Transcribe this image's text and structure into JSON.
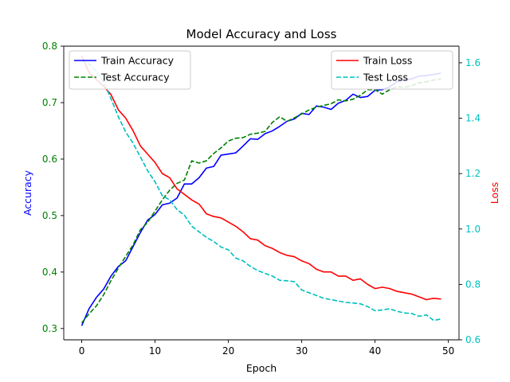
{
  "chart_data": {
    "type": "line",
    "title": "Model Accuracy and Loss",
    "xlabel": "Epoch",
    "ylabel_left": "Accuracy",
    "ylabel_right": "Loss",
    "xlim": [
      -2.45,
      51.45
    ],
    "ylim_left": [
      0.28,
      0.8
    ],
    "ylim_right": [
      0.6,
      1.66
    ],
    "x_ticks": [
      0,
      10,
      20,
      30,
      40,
      50
    ],
    "y_ticks_left": [
      0.3,
      0.4,
      0.5,
      0.6,
      0.7,
      0.8
    ],
    "y_ticks_right": [
      0.6,
      0.8,
      1.0,
      1.2,
      1.4,
      1.6
    ],
    "grid": false,
    "colors": {
      "left_axis": "#008000",
      "right_axis": "#00bfbf",
      "left_label": "#0000ff",
      "right_label": "#ff0000"
    },
    "legend_left": {
      "placement": "top-left",
      "entries": [
        "Train Accuracy",
        "Test Accuracy"
      ]
    },
    "legend_right": {
      "placement": "top-right",
      "entries": [
        "Train Loss",
        "Test Loss"
      ]
    },
    "x": [
      0,
      1,
      2,
      3,
      4,
      5,
      6,
      7,
      8,
      9,
      10,
      11,
      12,
      13,
      14,
      15,
      16,
      17,
      18,
      19,
      20,
      21,
      22,
      23,
      24,
      25,
      26,
      27,
      28,
      29,
      30,
      31,
      32,
      33,
      34,
      35,
      36,
      37,
      38,
      39,
      40,
      41,
      42,
      43,
      44,
      45,
      46,
      47,
      48,
      49
    ],
    "series": [
      {
        "name": "Train Accuracy",
        "axis": "left",
        "color": "#0000ff",
        "dash": "solid",
        "values": [
          0.305,
          0.335,
          0.355,
          0.37,
          0.393,
          0.41,
          0.42,
          0.445,
          0.47,
          0.492,
          0.502,
          0.519,
          0.522,
          0.531,
          0.556,
          0.556,
          0.567,
          0.584,
          0.587,
          0.607,
          0.609,
          0.611,
          0.623,
          0.636,
          0.635,
          0.645,
          0.65,
          0.658,
          0.667,
          0.671,
          0.681,
          0.679,
          0.694,
          0.692,
          0.688,
          0.699,
          0.704,
          0.715,
          0.709,
          0.711,
          0.722,
          0.723,
          0.728,
          0.737,
          0.74,
          0.742,
          0.747,
          0.748,
          0.75,
          0.752
        ]
      },
      {
        "name": "Test Accuracy",
        "axis": "left",
        "color": "#008000",
        "dash": "dashed",
        "values": [
          0.31,
          0.326,
          0.34,
          0.36,
          0.385,
          0.407,
          0.428,
          0.448,
          0.475,
          0.488,
          0.508,
          0.528,
          0.545,
          0.557,
          0.563,
          0.597,
          0.593,
          0.597,
          0.61,
          0.62,
          0.632,
          0.637,
          0.638,
          0.644,
          0.646,
          0.649,
          0.665,
          0.675,
          0.667,
          0.673,
          0.68,
          0.687,
          0.692,
          0.695,
          0.698,
          0.705,
          0.703,
          0.706,
          0.713,
          0.723,
          0.723,
          0.715,
          0.723,
          0.728,
          0.727,
          0.73,
          0.735,
          0.737,
          0.74,
          0.742
        ]
      },
      {
        "name": "Train Loss",
        "axis": "right",
        "color": "#ff0000",
        "dash": "solid",
        "values": [
          1.625,
          1.565,
          1.54,
          1.515,
          1.485,
          1.43,
          1.4,
          1.355,
          1.3,
          1.27,
          1.24,
          1.2,
          1.185,
          1.145,
          1.125,
          1.105,
          1.09,
          1.055,
          1.045,
          1.04,
          1.025,
          1.01,
          0.99,
          0.965,
          0.96,
          0.94,
          0.93,
          0.915,
          0.905,
          0.9,
          0.885,
          0.875,
          0.855,
          0.845,
          0.845,
          0.83,
          0.83,
          0.815,
          0.82,
          0.8,
          0.785,
          0.79,
          0.785,
          0.775,
          0.77,
          0.765,
          0.755,
          0.745,
          0.75,
          0.747
        ]
      },
      {
        "name": "Test Loss",
        "axis": "right",
        "color": "#00bfbf",
        "dash": "dashed",
        "values": [
          1.61,
          1.595,
          1.57,
          1.53,
          1.47,
          1.405,
          1.35,
          1.31,
          1.26,
          1.21,
          1.17,
          1.12,
          1.105,
          1.07,
          1.05,
          1.01,
          0.99,
          0.97,
          0.955,
          0.935,
          0.925,
          0.895,
          0.885,
          0.865,
          0.85,
          0.84,
          0.83,
          0.815,
          0.813,
          0.81,
          0.78,
          0.77,
          0.76,
          0.75,
          0.745,
          0.74,
          0.735,
          0.733,
          0.73,
          0.72,
          0.705,
          0.708,
          0.712,
          0.703,
          0.697,
          0.695,
          0.685,
          0.69,
          0.67,
          0.675
        ]
      }
    ]
  }
}
